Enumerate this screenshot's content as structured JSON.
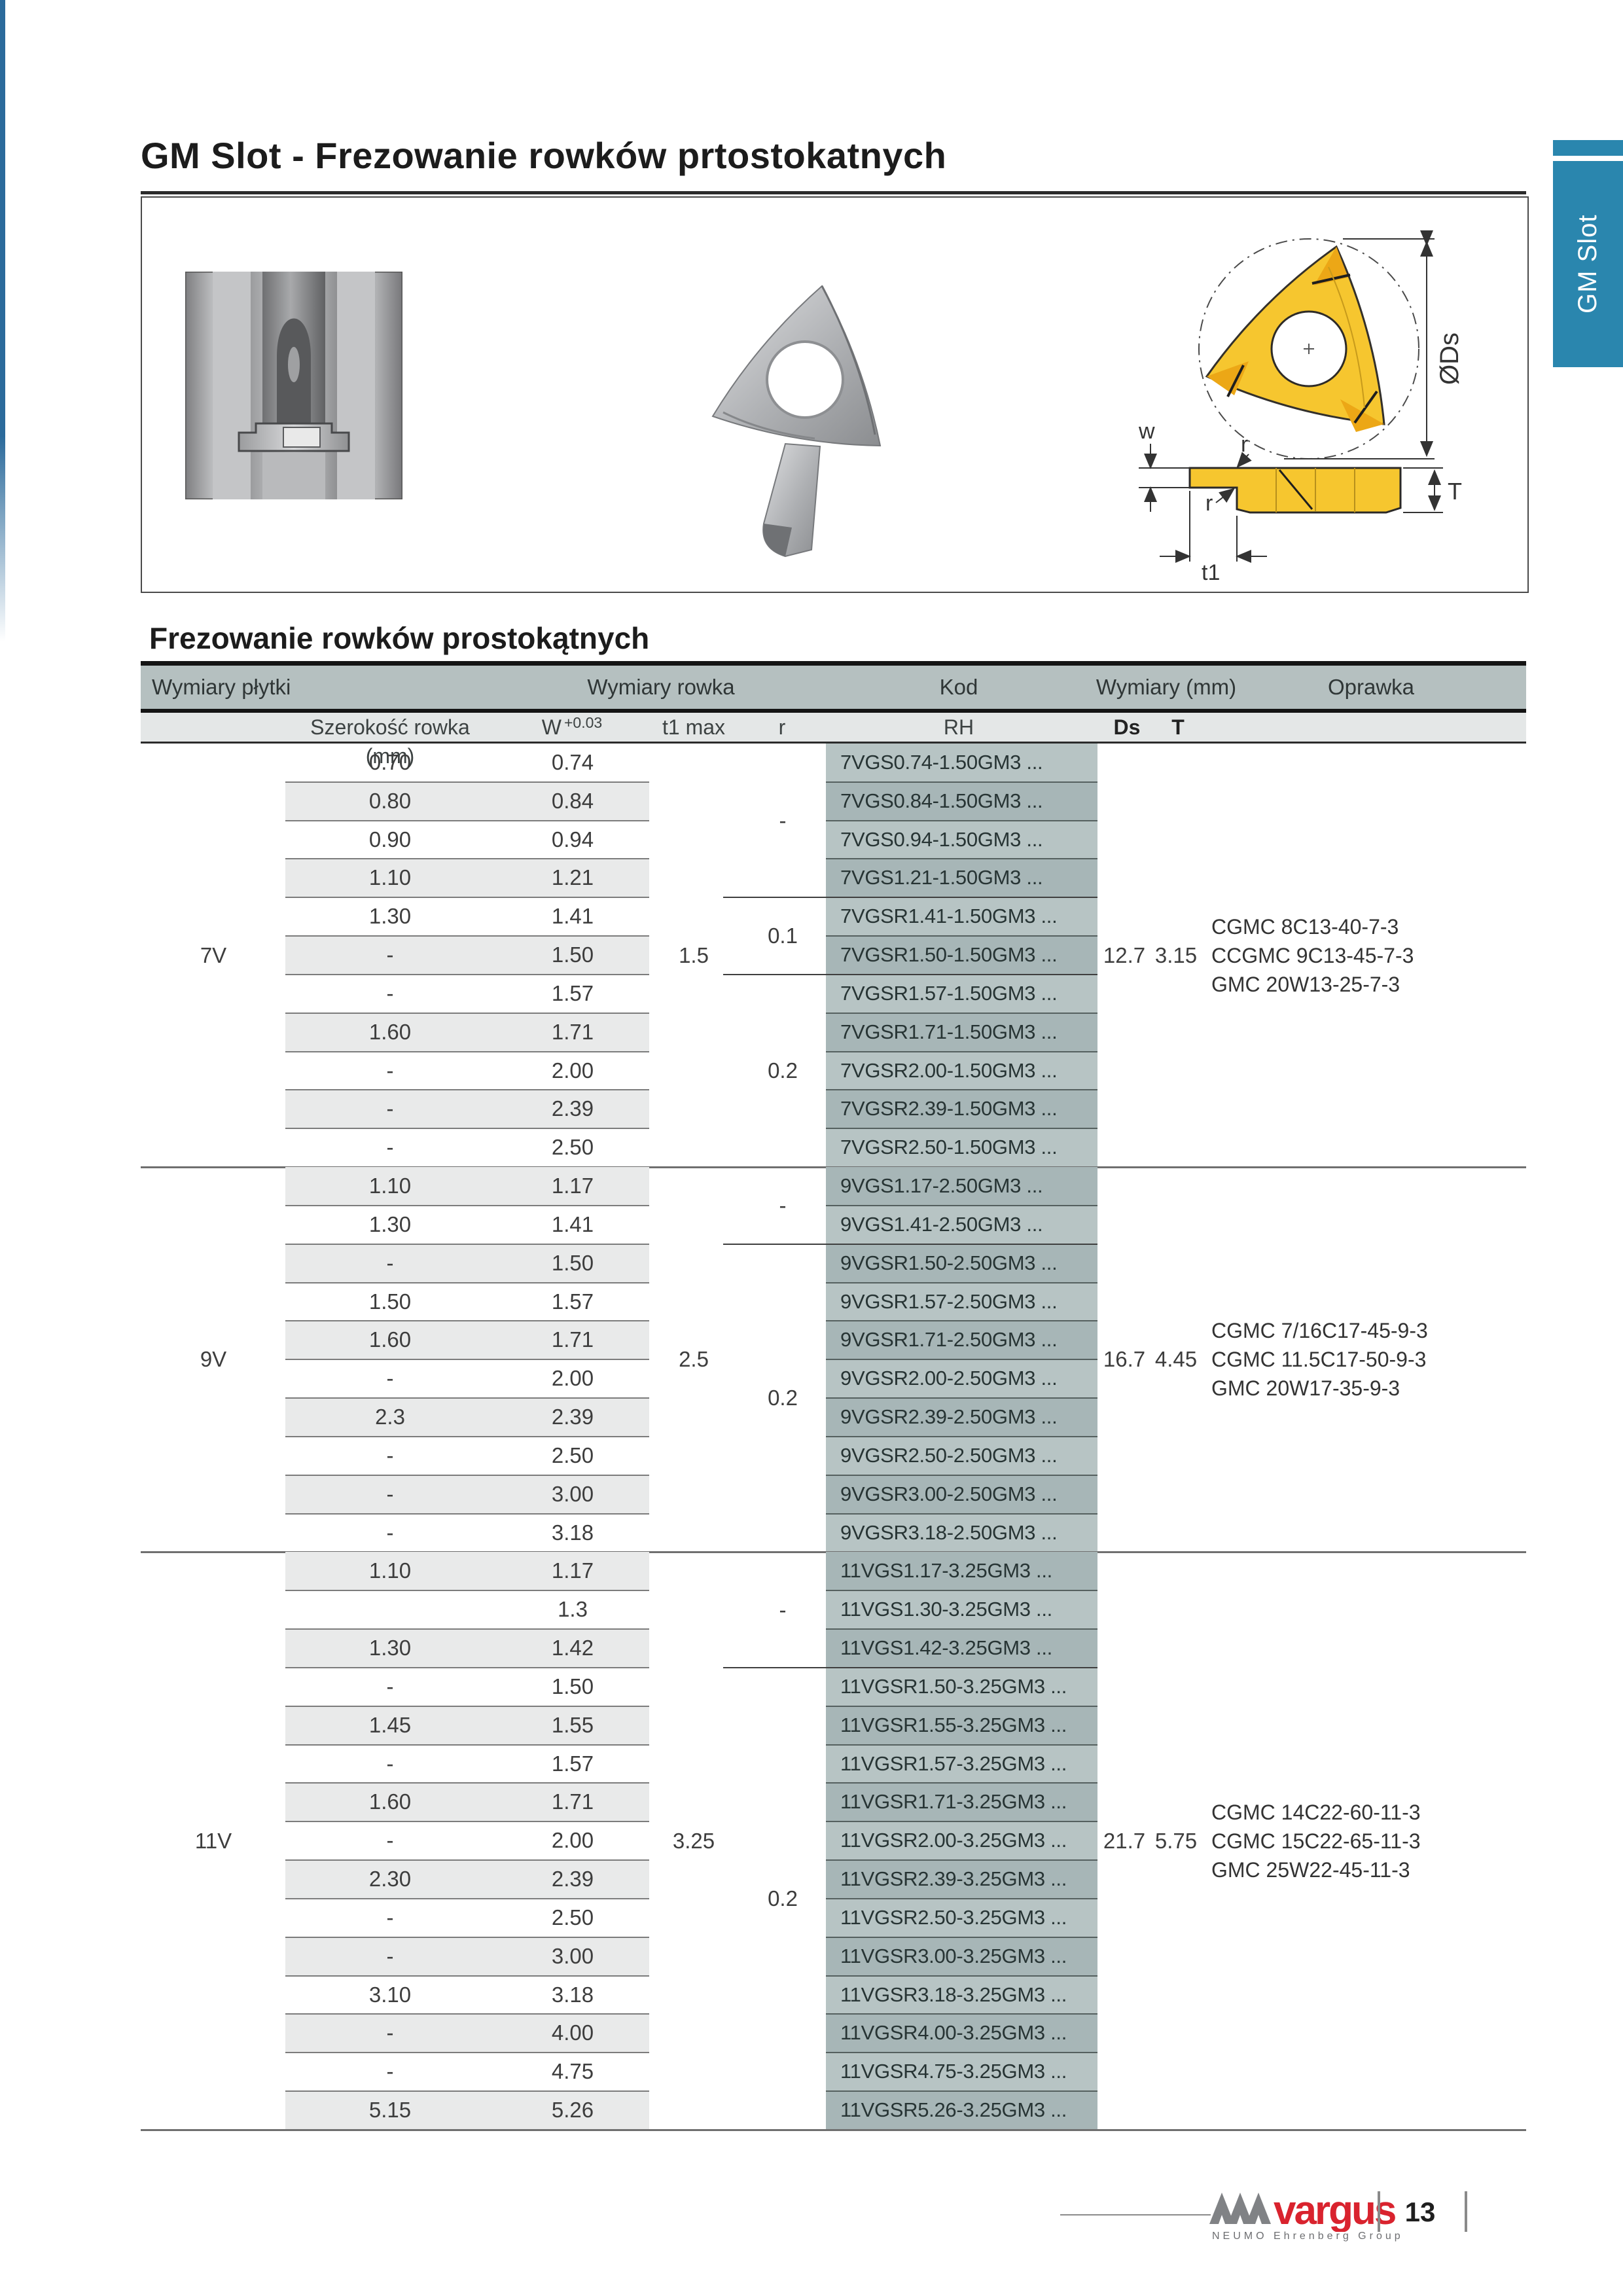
{
  "page": {
    "title": "GM Slot - Frezowanie rowków prtostokatnych",
    "side_tab": "GM Slot",
    "section_heading": "Frezowanie rowków prostokątnych",
    "page_number": "13",
    "footer_brand": "vargus",
    "footer_subbrand": "NEUMO Ehrenberg Group"
  },
  "colors": {
    "tab_blue": "#2a86ae",
    "header_band": "#b5c0c0",
    "header_band2": "#e4e7e7",
    "code_light": "#b7c4c4",
    "code_dark": "#a7b6b7",
    "stripe_gray": "#e9eaea",
    "insert_yellow": "#f6c62f",
    "brand_red": "#d9232e"
  },
  "diagram_labels": {
    "diameter": "ØDs",
    "width": "w",
    "radius_top": "r",
    "radius_bottom": "r",
    "depth": "t1",
    "thickness": "T"
  },
  "table": {
    "headers": {
      "group_insert": "Wymiary płytki",
      "group_groove": "Wymiary rowka",
      "group_code": "Kod",
      "group_dims": "Wymiary (mm)",
      "group_holder": "Oprawka",
      "col_width": "Szerokość rowka (mm)",
      "col_w": "W",
      "col_w_tol": "+0.03",
      "col_t1": "t1 max",
      "col_r": "r",
      "col_rh": "RH",
      "col_ds": "Ds",
      "col_t": "T"
    },
    "sections": [
      {
        "type": "7V",
        "t1_max": "1.5",
        "ds": "12.7",
        "t": "3.15",
        "holders": [
          "CGMC 8C13-40-7-3",
          "CCGMC 9C13-45-7-3",
          "GMC 20W13-25-7-3"
        ],
        "r_groups": [
          {
            "r": "-",
            "rows": 4
          },
          {
            "r": "0.1",
            "rows": 2
          },
          {
            "r": "0.2",
            "rows": 5
          }
        ],
        "rows": [
          {
            "width": "0.70",
            "w": "0.74",
            "code": "7VGS0.74-1.50GM3 ..."
          },
          {
            "width": "0.80",
            "w": "0.84",
            "code": "7VGS0.84-1.50GM3 ..."
          },
          {
            "width": "0.90",
            "w": "0.94",
            "code": "7VGS0.94-1.50GM3 ..."
          },
          {
            "width": "1.10",
            "w": "1.21",
            "code": "7VGS1.21-1.50GM3 ..."
          },
          {
            "width": "1.30",
            "w": "1.41",
            "code": "7VGSR1.41-1.50GM3 ..."
          },
          {
            "width": "-",
            "w": "1.50",
            "code": "7VGSR1.50-1.50GM3 ..."
          },
          {
            "width": "-",
            "w": "1.57",
            "code": "7VGSR1.57-1.50GM3 ..."
          },
          {
            "width": "1.60",
            "w": "1.71",
            "code": "7VGSR1.71-1.50GM3 ..."
          },
          {
            "width": "-",
            "w": "2.00",
            "code": "7VGSR2.00-1.50GM3 ..."
          },
          {
            "width": "-",
            "w": "2.39",
            "code": "7VGSR2.39-1.50GM3 ..."
          },
          {
            "width": "-",
            "w": "2.50",
            "code": "7VGSR2.50-1.50GM3 ..."
          }
        ]
      },
      {
        "type": "9V",
        "t1_max": "2.5",
        "ds": "16.7",
        "t": "4.45",
        "holders": [
          "CGMC 7/16C17-45-9-3",
          "CGMC 11.5C17-50-9-3",
          "GMC 20W17-35-9-3"
        ],
        "r_groups": [
          {
            "r": "-",
            "rows": 2
          },
          {
            "r": "0.2",
            "rows": 8
          }
        ],
        "rows": [
          {
            "width": "1.10",
            "w": "1.17",
            "code": "9VGS1.17-2.50GM3 ..."
          },
          {
            "width": "1.30",
            "w": "1.41",
            "code": "9VGS1.41-2.50GM3 ..."
          },
          {
            "width": "-",
            "w": "1.50",
            "code": "9VGSR1.50-2.50GM3 ..."
          },
          {
            "width": "1.50",
            "w": "1.57",
            "code": "9VGSR1.57-2.50GM3 ..."
          },
          {
            "width": "1.60",
            "w": "1.71",
            "code": "9VGSR1.71-2.50GM3 ..."
          },
          {
            "width": "-",
            "w": "2.00",
            "code": "9VGSR2.00-2.50GM3 ..."
          },
          {
            "width": "2.3",
            "w": "2.39",
            "code": "9VGSR2.39-2.50GM3 ..."
          },
          {
            "width": "-",
            "w": "2.50",
            "code": "9VGSR2.50-2.50GM3 ..."
          },
          {
            "width": "-",
            "w": "3.00",
            "code": "9VGSR3.00-2.50GM3 ..."
          },
          {
            "width": "-",
            "w": "3.18",
            "code": "9VGSR3.18-2.50GM3 ..."
          }
        ]
      },
      {
        "type": "11V",
        "t1_max": "3.25",
        "ds": "21.7",
        "t": "5.75",
        "holders": [
          "CGMC 14C22-60-11-3",
          "CGMC 15C22-65-11-3",
          "GMC 25W22-45-11-3"
        ],
        "r_groups": [
          {
            "r": "-",
            "rows": 3
          },
          {
            "r": "0.2",
            "rows": 12
          }
        ],
        "rows": [
          {
            "width": "1.10",
            "w": "1.17",
            "code": "11VGS1.17-3.25GM3 ..."
          },
          {
            "width": "",
            "w": "1.3",
            "code": "11VGS1.30-3.25GM3 ..."
          },
          {
            "width": "1.30",
            "w": "1.42",
            "code": "11VGS1.42-3.25GM3 ..."
          },
          {
            "width": "-",
            "w": "1.50",
            "code": "11VGSR1.50-3.25GM3 ..."
          },
          {
            "width": "1.45",
            "w": "1.55",
            "code": "11VGSR1.55-3.25GM3 ..."
          },
          {
            "width": "-",
            "w": "1.57",
            "code": "11VGSR1.57-3.25GM3 ..."
          },
          {
            "width": "1.60",
            "w": "1.71",
            "code": "11VGSR1.71-3.25GM3 ..."
          },
          {
            "width": "-",
            "w": "2.00",
            "code": "11VGSR2.00-3.25GM3 ..."
          },
          {
            "width": "2.30",
            "w": "2.39",
            "code": "11VGSR2.39-3.25GM3 ..."
          },
          {
            "width": "-",
            "w": "2.50",
            "code": "11VGSR2.50-3.25GM3 ..."
          },
          {
            "width": "-",
            "w": "3.00",
            "code": "11VGSR3.00-3.25GM3 ..."
          },
          {
            "width": "3.10",
            "w": "3.18",
            "code": "11VGSR3.18-3.25GM3 ..."
          },
          {
            "width": "-",
            "w": "4.00",
            "code": "11VGSR4.00-3.25GM3 ..."
          },
          {
            "width": "-",
            "w": "4.75",
            "code": "11VGSR4.75-3.25GM3 ..."
          },
          {
            "width": "5.15",
            "w": "5.26",
            "code": "11VGSR5.26-3.25GM3 ..."
          }
        ]
      }
    ]
  }
}
